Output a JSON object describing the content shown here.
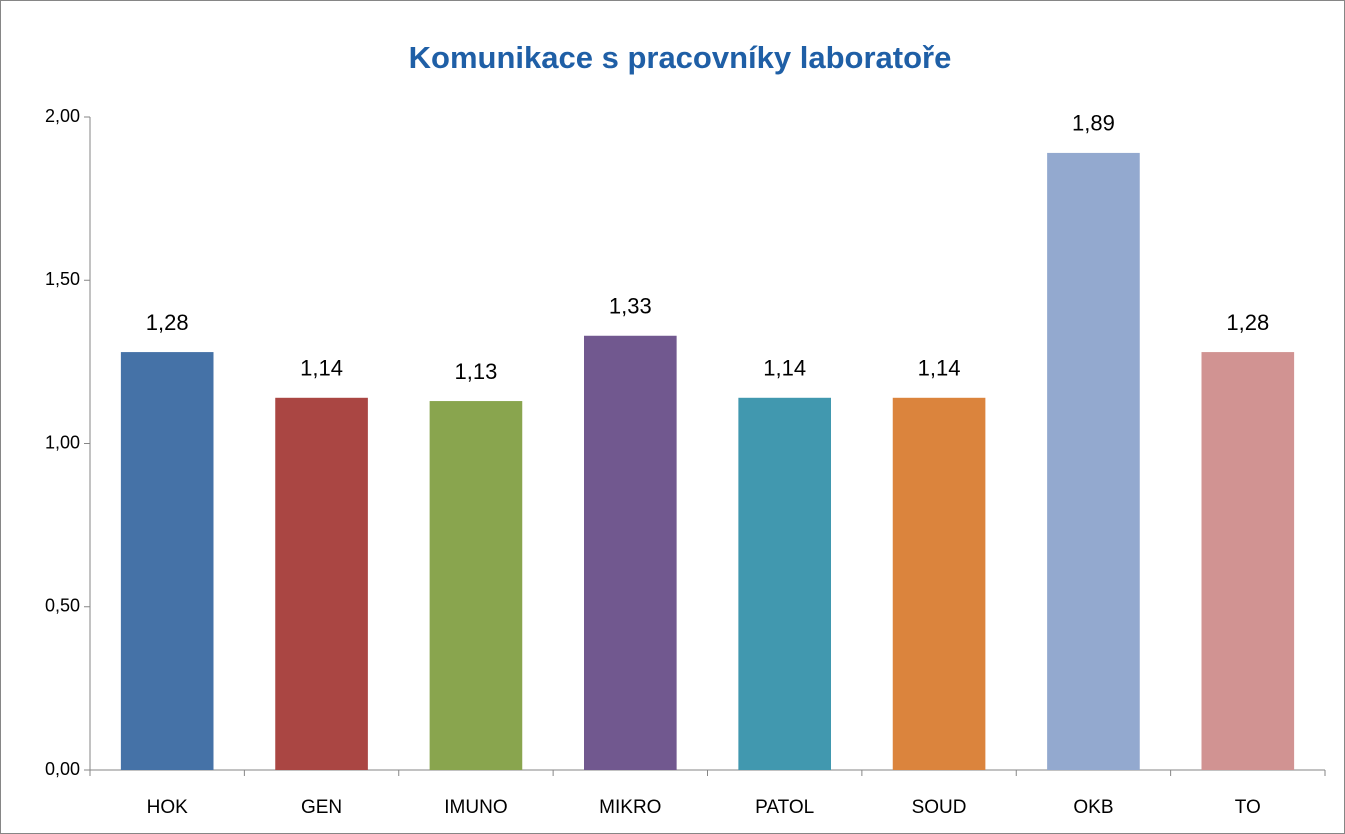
{
  "chart_data": {
    "type": "bar",
    "title": "Komunikace s pracovníky laboratoře",
    "categories": [
      "HOK",
      "GEN",
      "IMUNO",
      "MIKRO",
      "PATOL",
      "SOUD",
      "OKB",
      "TO"
    ],
    "values": [
      1.28,
      1.14,
      1.13,
      1.33,
      1.14,
      1.14,
      1.89,
      1.28
    ],
    "value_labels": [
      "1,28",
      "1,14",
      "1,13",
      "1,33",
      "1,14",
      "1,14",
      "1,89",
      "1,28"
    ],
    "colors": [
      "#4572a7",
      "#aa4643",
      "#89a54e",
      "#71588f",
      "#4198af",
      "#db843d",
      "#93a9cf",
      "#d19392"
    ],
    "ylim": [
      0,
      2
    ],
    "yticks": [
      {
        "value": 0,
        "label": "0,00"
      },
      {
        "value": 0.5,
        "label": "0,50"
      },
      {
        "value": 1,
        "label": "1,00"
      },
      {
        "value": 1.5,
        "label": "1,50"
      },
      {
        "value": 2,
        "label": "2,00"
      }
    ],
    "grid": false
  }
}
